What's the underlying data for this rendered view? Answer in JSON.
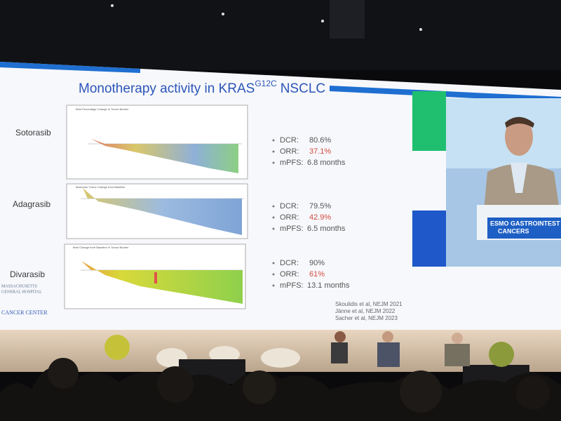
{
  "slide": {
    "title": {
      "prefix": "Monotherapy activity in KRAS",
      "superscript": "G12C",
      "suffix": "NSCLC"
    },
    "drugs": [
      {
        "name": "Sotorasib",
        "panel_title": "Best Percentage Change in Tumor Burden",
        "stats": [
          {
            "label": "DCR:",
            "value": "80.6%"
          },
          {
            "label": "ORR:",
            "value": "37.1%"
          },
          {
            "label": "mPFS:",
            "value": "6.8 months"
          }
        ]
      },
      {
        "name": "Adagrasib",
        "panel_title": "Maximum Tumor Change from Baseline",
        "stats": [
          {
            "label": "DCR:",
            "value": "79.5%"
          },
          {
            "label": "ORR:",
            "value": "42.9%"
          },
          {
            "label": "mPFS:",
            "value": "6.5 months"
          }
        ]
      },
      {
        "name": "Divarasib",
        "panel_title": "Best Change from Baseline in Tumor Burden",
        "stats": [
          {
            "label": "DCR:",
            "value": "90%"
          },
          {
            "label": "ORR:",
            "value": "61%"
          },
          {
            "label": "mPFS:",
            "value": "13.1 months"
          }
        ]
      }
    ],
    "references": [
      "Skoulidis et al, NEJM 2021",
      "Jänne et al, NEJM 2022",
      "Sacher et al, NEJM 2023"
    ],
    "logo": {
      "line1": "MASSACHUSETTS",
      "line2": "GENERAL HOSPITAL",
      "line3": "CANCER CENTER"
    }
  },
  "banner": {
    "line1": "ESMO GASTROINTEST",
    "line2": "CANCERS"
  }
}
